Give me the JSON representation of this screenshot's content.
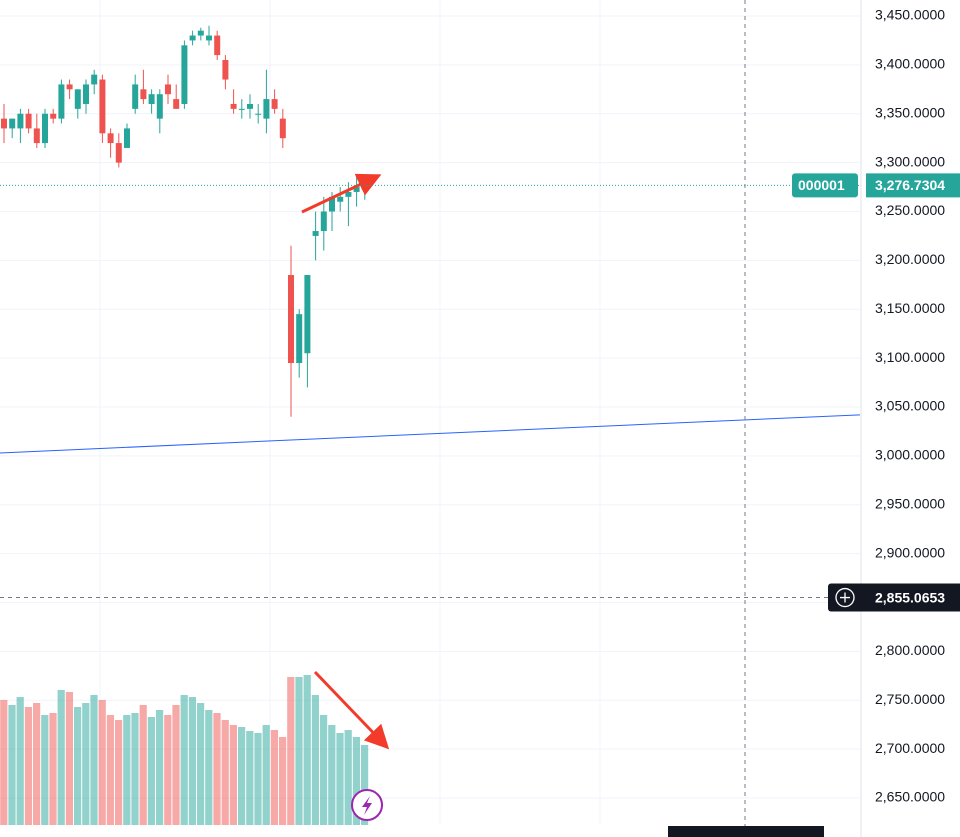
{
  "chart_data": {
    "type": "candlestick",
    "open": [
      3345,
      3335,
      3335,
      3350,
      3335,
      3320,
      3350,
      3345,
      3380,
      3355,
      3360,
      3380,
      3385,
      3330,
      3320,
      3315,
      3355,
      3375,
      3360,
      3345,
      3380,
      3365,
      3360,
      3425,
      3430,
      3425,
      3430,
      3405,
      3360,
      3355,
      3355,
      3350,
      3345,
      3365,
      3345,
      3185,
      3095,
      3105,
      3225,
      3230,
      3250,
      3260,
      3265,
      3270,
      3272
    ],
    "high": [
      3360,
      3345,
      3355,
      3355,
      3350,
      3355,
      3355,
      3385,
      3385,
      3375,
      3385,
      3395,
      3390,
      3335,
      3330,
      3340,
      3390,
      3395,
      3375,
      3375,
      3390,
      3380,
      3425,
      3435,
      3438,
      3440,
      3435,
      3410,
      3375,
      3365,
      3370,
      3360,
      3395,
      3375,
      3355,
      3215,
      3150,
      3185,
      3250,
      3265,
      3270,
      3275,
      3280,
      3285,
      3285
    ],
    "low": [
      3320,
      3325,
      3320,
      3330,
      3315,
      3315,
      3340,
      3340,
      3365,
      3345,
      3350,
      3370,
      3320,
      3305,
      3295,
      3315,
      3350,
      3360,
      3350,
      3330,
      3360,
      3355,
      3355,
      3420,
      3425,
      3420,
      3405,
      3375,
      3350,
      3345,
      3345,
      3340,
      3330,
      3350,
      3315,
      3040,
      3080,
      3070,
      3200,
      3210,
      3230,
      3250,
      3235,
      3255,
      3262
    ],
    "close": [
      3335,
      3345,
      3350,
      3335,
      3320,
      3350,
      3345,
      3380,
      3375,
      3375,
      3380,
      3390,
      3330,
      3320,
      3300,
      3335,
      3380,
      3365,
      3370,
      3370,
      3370,
      3355,
      3420,
      3430,
      3435,
      3430,
      3410,
      3385,
      3355,
      3355,
      3360,
      3350,
      3365,
      3355,
      3325,
      3095,
      3145,
      3185,
      3230,
      3250,
      3265,
      3265,
      3270,
      3275,
      3277
    ],
    "volume": [
      125,
      120,
      128,
      118,
      122,
      110,
      112,
      135,
      133,
      118,
      122,
      130,
      125,
      110,
      105,
      110,
      112,
      120,
      108,
      115,
      110,
      120,
      130,
      128,
      122,
      115,
      112,
      105,
      100,
      98,
      94,
      92,
      100,
      95,
      88,
      148,
      148,
      150,
      130,
      110,
      100,
      92,
      95,
      88,
      80
    ],
    "up_color": "#26a69a",
    "down_color": "#ef5350",
    "ylim": [
      2650,
      3450
    ],
    "yticks": [
      {
        "value": 3450,
        "label": "3,450.0000"
      },
      {
        "value": 3400,
        "label": "3,400.0000"
      },
      {
        "value": 3350,
        "label": "3,350.0000"
      },
      {
        "value": 3300,
        "label": "3,300.0000"
      },
      {
        "value": 3250,
        "label": "3,250.0000"
      },
      {
        "value": 3200,
        "label": "3,200.0000"
      },
      {
        "value": 3150,
        "label": "3,150.0000"
      },
      {
        "value": 3100,
        "label": "3,100.0000"
      },
      {
        "value": 3050,
        "label": "3,050.0000"
      },
      {
        "value": 3000,
        "label": "3,000.0000"
      },
      {
        "value": 2950,
        "label": "2,950.0000"
      },
      {
        "value": 2900,
        "label": "2,900.0000"
      },
      {
        "value": 2850,
        "label": "2,850.0000"
      },
      {
        "value": 2800,
        "label": "2,800.0000"
      },
      {
        "value": 2750,
        "label": "2,750.0000"
      },
      {
        "value": 2700,
        "label": "2,700.0000"
      },
      {
        "value": 2650,
        "label": "2,650.0000"
      }
    ],
    "grid": true,
    "trend_line": [
      3003,
      3042
    ],
    "last_price": {
      "symbol": "000001",
      "value": 3276.7304,
      "label": "3,276.7304"
    },
    "crosshair_price": {
      "value": 2855.0653,
      "label": "2,855.0653"
    }
  }
}
